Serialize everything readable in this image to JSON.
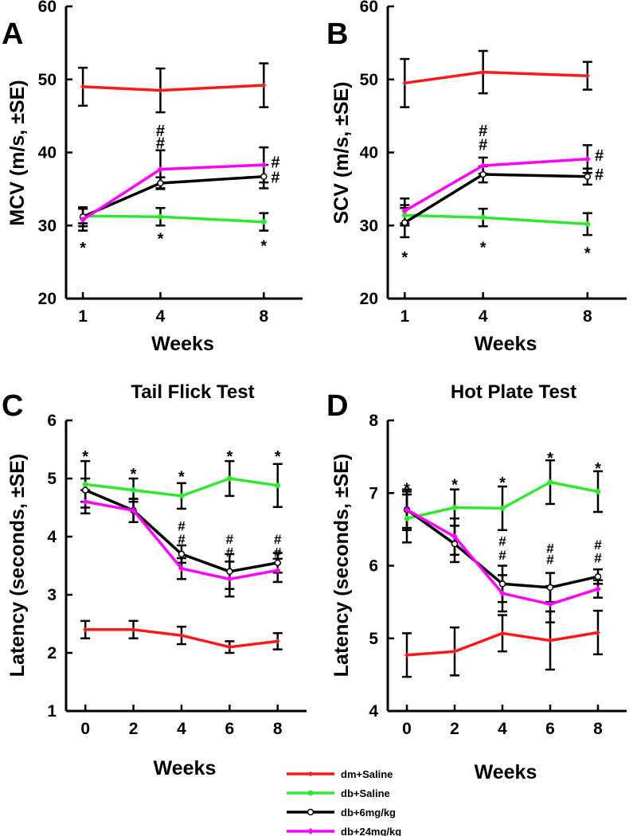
{
  "colors": {
    "dm_saline": "#ff1a1a",
    "db_saline": "#33e633",
    "db_6": "#000000",
    "db_24": "#ff00ff"
  },
  "legend": [
    {
      "key": "dm_saline",
      "label": "dm+Saline",
      "marker": "plus"
    },
    {
      "key": "db_saline",
      "label": "db+Saline",
      "marker": "dot"
    },
    {
      "key": "db_6",
      "label": "db+6mg/kg",
      "marker": "circle"
    },
    {
      "key": "db_24",
      "label": "db+24mg/kg",
      "marker": "diamond"
    }
  ],
  "chart_data": [
    {
      "id": "A",
      "type": "line",
      "panel_label": "A",
      "title": "",
      "xlabel": "Weeks",
      "ylabel": "MCV (m/s, ±SE)",
      "x": [
        1,
        4,
        8
      ],
      "x_ticks": [
        "1",
        "4",
        "8"
      ],
      "ylim": [
        20,
        60
      ],
      "y_ticks": [
        "20",
        "30",
        "40",
        "50",
        "60"
      ],
      "series": [
        {
          "key": "dm_saline",
          "name": "dm+Saline",
          "values": [
            49,
            48.5,
            49.2
          ],
          "err": [
            2.6,
            3.0,
            3.0
          ]
        },
        {
          "key": "db_saline",
          "name": "db+Saline",
          "values": [
            31.3,
            31.2,
            30.5
          ],
          "err": [
            1.0,
            1.2,
            1.2
          ]
        },
        {
          "key": "db_6",
          "name": "db+6mg/kg",
          "values": [
            31.2,
            35.8,
            36.7
          ],
          "err": [
            1.3,
            0.8,
            1.6
          ]
        },
        {
          "key": "db_24",
          "name": "db+24mg/kg",
          "values": [
            30.8,
            37.7,
            38.3
          ],
          "err": [
            1.5,
            2.6,
            2.4
          ]
        }
      ],
      "annotations": [
        {
          "text": "*",
          "x": 1,
          "y": 27.5
        },
        {
          "text": "*",
          "x": 4,
          "y": 28.8
        },
        {
          "text": "*",
          "x": 8,
          "y": 27.8
        },
        {
          "text": "#",
          "x": 4,
          "y": 43.0
        },
        {
          "text": "#",
          "x": 4,
          "y": 41.3
        },
        {
          "text": "#",
          "x": 8.45,
          "y": 38.7
        },
        {
          "text": "#",
          "x": 8.45,
          "y": 36.6
        }
      ]
    },
    {
      "id": "B",
      "type": "line",
      "panel_label": "B",
      "title": "",
      "xlabel": "Weeks",
      "ylabel": "SCV (m/s, ±SE)",
      "x": [
        1,
        4,
        8
      ],
      "x_ticks": [
        "1",
        "4",
        "8"
      ],
      "ylim": [
        20,
        60
      ],
      "y_ticks": [
        "20",
        "30",
        "40",
        "50",
        "60"
      ],
      "series": [
        {
          "key": "dm_saline",
          "name": "dm+Saline",
          "values": [
            49.5,
            51,
            50.5
          ],
          "err": [
            3.3,
            2.9,
            1.9
          ]
        },
        {
          "key": "db_saline",
          "name": "db+Saline",
          "values": [
            31.4,
            31.1,
            30.2
          ],
          "err": [
            1.4,
            1.2,
            1.5
          ]
        },
        {
          "key": "db_6",
          "name": "db+6mg/kg",
          "values": [
            30.4,
            37,
            36.7
          ],
          "err": [
            2.0,
            1.1,
            1.1
          ]
        },
        {
          "key": "db_24",
          "name": "db+24mg/kg",
          "values": [
            32,
            38.2,
            39.1
          ],
          "err": [
            1.7,
            1.1,
            1.9
          ]
        }
      ],
      "annotations": [
        {
          "text": "*",
          "x": 1,
          "y": 26.2
        },
        {
          "text": "*",
          "x": 4,
          "y": 27.6
        },
        {
          "text": "*",
          "x": 8,
          "y": 26.8
        },
        {
          "text": "#",
          "x": 4,
          "y": 43.0
        },
        {
          "text": "#",
          "x": 4,
          "y": 41.1
        },
        {
          "text": "#",
          "x": 8.45,
          "y": 39.6
        },
        {
          "text": "#",
          "x": 8.45,
          "y": 37.0
        }
      ]
    },
    {
      "id": "C",
      "type": "line",
      "panel_label": "C",
      "title": "Tail Flick Test",
      "xlabel": "Weeks",
      "ylabel": "Latency (seconds, ±SE)",
      "x": [
        0,
        2,
        4,
        6,
        8
      ],
      "x_ticks": [
        "0",
        "2",
        "4",
        "6",
        "8"
      ],
      "ylim": [
        1,
        6
      ],
      "y_ticks": [
        "1",
        "2",
        "3",
        "4",
        "5",
        "6"
      ],
      "series": [
        {
          "key": "dm_saline",
          "name": "dm+Saline",
          "values": [
            2.4,
            2.4,
            2.3,
            2.1,
            2.2
          ],
          "err": [
            0.15,
            0.15,
            0.15,
            0.1,
            0.14
          ]
        },
        {
          "key": "db_saline",
          "name": "db+Saline",
          "values": [
            4.9,
            4.8,
            4.7,
            5.0,
            4.88
          ],
          "err": [
            0.4,
            0.2,
            0.22,
            0.3,
            0.37
          ]
        },
        {
          "key": "db_6",
          "name": "db+6mg/kg",
          "values": [
            4.8,
            4.45,
            3.7,
            3.4,
            3.55
          ],
          "err": [
            0.2,
            0.2,
            0.15,
            0.3,
            0.17
          ]
        },
        {
          "key": "db_24",
          "name": "db+24mg/kg",
          "values": [
            4.6,
            4.45,
            3.45,
            3.27,
            3.42
          ],
          "err": [
            0.2,
            0.2,
            0.18,
            0.3,
            0.2
          ]
        }
      ],
      "annotations": [
        {
          "text": "*",
          "x": 0,
          "y": 5.45
        },
        {
          "text": "*",
          "x": 2,
          "y": 5.15
        },
        {
          "text": "*",
          "x": 4,
          "y": 5.1
        },
        {
          "text": "*",
          "x": 6,
          "y": 5.45
        },
        {
          "text": "*",
          "x": 8,
          "y": 5.45
        },
        {
          "text": "#",
          "x": 4,
          "y": 4.2
        },
        {
          "text": "#",
          "x": 4,
          "y": 3.97
        },
        {
          "text": "#",
          "x": 6,
          "y": 3.97
        },
        {
          "text": "#",
          "x": 6,
          "y": 3.75
        },
        {
          "text": "#",
          "x": 8,
          "y": 3.97
        },
        {
          "text": "#",
          "x": 8,
          "y": 3.75
        }
      ]
    },
    {
      "id": "D",
      "type": "line",
      "panel_label": "D",
      "title": "Hot Plate Test",
      "xlabel": "Weeks",
      "ylabel": "Latency (seconds, ±SE)",
      "x": [
        0,
        2,
        4,
        6,
        8
      ],
      "x_ticks": [
        "0",
        "2",
        "4",
        "6",
        "8"
      ],
      "ylim": [
        4,
        8
      ],
      "y_ticks": [
        "4",
        "5",
        "6",
        "7",
        "8"
      ],
      "series": [
        {
          "key": "dm_saline",
          "name": "dm+Saline",
          "values": [
            4.77,
            4.82,
            5.07,
            4.97,
            5.08
          ],
          "err": [
            0.3,
            0.33,
            0.25,
            0.4,
            0.3
          ]
        },
        {
          "key": "db_saline",
          "name": "db+Saline",
          "values": [
            6.65,
            6.8,
            6.79,
            7.15,
            7.02
          ],
          "err": [
            0.33,
            0.25,
            0.3,
            0.3,
            0.28
          ]
        },
        {
          "key": "db_6",
          "name": "db+6mg/kg",
          "values": [
            6.77,
            6.3,
            5.75,
            5.7,
            5.85
          ],
          "err": [
            0.25,
            0.25,
            0.25,
            0.2,
            0.1
          ]
        },
        {
          "key": "db_24",
          "name": "db+24mg/kg",
          "values": [
            6.77,
            6.4,
            5.62,
            5.47,
            5.68
          ],
          "err": [
            0.28,
            0.25,
            0.25,
            0.25,
            0.12
          ]
        }
      ],
      "annotations": [
        {
          "text": "*",
          "x": 0,
          "y": 7.12
        },
        {
          "text": "*",
          "x": 2,
          "y": 7.17
        },
        {
          "text": "*",
          "x": 4,
          "y": 7.2
        },
        {
          "text": "*",
          "x": 6,
          "y": 7.54
        },
        {
          "text": "*",
          "x": 8,
          "y": 7.4
        },
        {
          "text": "#",
          "x": 4,
          "y": 6.35
        },
        {
          "text": "#",
          "x": 4,
          "y": 6.16
        },
        {
          "text": "#",
          "x": 6,
          "y": 6.25
        },
        {
          "text": "#",
          "x": 6,
          "y": 6.1
        },
        {
          "text": "#",
          "x": 8,
          "y": 6.3
        },
        {
          "text": "#",
          "x": 8,
          "y": 6.12
        }
      ]
    }
  ]
}
